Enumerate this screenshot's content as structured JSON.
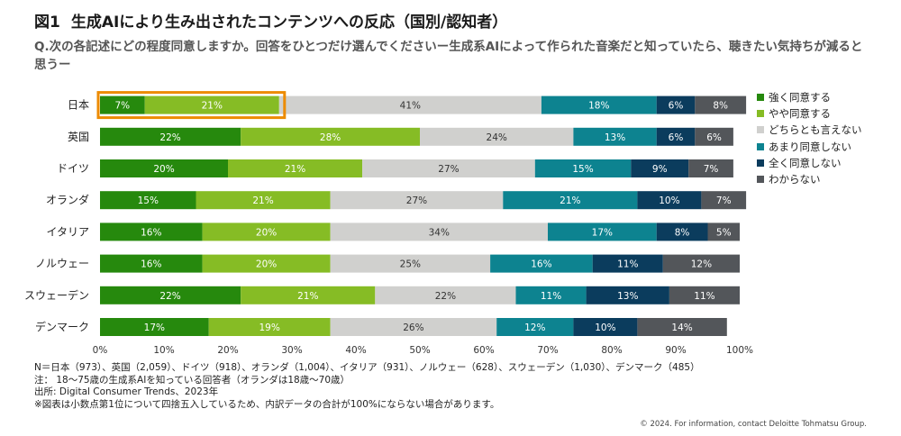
{
  "header": {
    "figure_no": "図1",
    "title": "生成AIにより生み出されたコンテンツへの反応（国別/認知者）",
    "question": "Q.次の各記述にどの程度同意しますか。回答をひとつだけ選んでくださいー生成系AIによって作られた音楽だと知っていたら、聴きたい気持ちが減ると思うー"
  },
  "chart_data": {
    "type": "bar",
    "orientation": "horizontal",
    "stacked": true,
    "categories": [
      "日本",
      "英国",
      "ドイツ",
      "オランダ",
      "イタリア",
      "ノルウェー",
      "スウェーデン",
      "デンマーク"
    ],
    "series": [
      {
        "name": "強く同意する",
        "color": "#26890d",
        "label_color": "#ffffff",
        "values": [
          7,
          22,
          20,
          15,
          16,
          16,
          22,
          17
        ]
      },
      {
        "name": "やや同意する",
        "color": "#86bc25",
        "label_color": "#ffffff",
        "values": [
          21,
          28,
          21,
          21,
          20,
          20,
          21,
          19
        ]
      },
      {
        "name": "どちらとも言えない",
        "color": "#d0d0ce",
        "label_color": "#333333",
        "values": [
          41,
          24,
          27,
          27,
          34,
          25,
          22,
          26
        ]
      },
      {
        "name": "あまり同意しない",
        "color": "#0d8390",
        "label_color": "#ffffff",
        "values": [
          18,
          13,
          15,
          21,
          17,
          16,
          11,
          12
        ]
      },
      {
        "name": "全く同意しない",
        "color": "#0b3c5d",
        "label_color": "#ffffff",
        "values": [
          6,
          6,
          9,
          10,
          8,
          11,
          13,
          10
        ]
      },
      {
        "name": "わからない",
        "color": "#53565a",
        "label_color": "#ffffff",
        "values": [
          8,
          6,
          7,
          7,
          5,
          12,
          11,
          14
        ]
      }
    ],
    "xlim": [
      0,
      100
    ],
    "x_ticks": [
      "0%",
      "10%",
      "20%",
      "30%",
      "40%",
      "50%",
      "60%",
      "70%",
      "80%",
      "90%",
      "100%"
    ],
    "value_suffix": "%",
    "legend_position": "right",
    "grid": false,
    "highlight": {
      "category": "日本",
      "series": [
        "強く同意する",
        "やや同意する"
      ],
      "color": "#ed8b00"
    }
  },
  "notes": [
    "N＝日本（973）、英国（2,059）、ドイツ（918）、オランダ（1,004）、イタリア（931）、ノルウェー（628）、スウェーデン（1,030）、デンマーク（485）",
    "注： 18～75歳の生成系AIを知っている回答者（オランダは18歳～70歳）",
    "出所: Digital Consumer Trends、2023年",
    "※図表は小数点第1位について四捨五入しているため、内訳データの合計が100%にならない場合があります。"
  ],
  "copyright": "© 2024. For information, contact Deloitte Tohmatsu Group."
}
